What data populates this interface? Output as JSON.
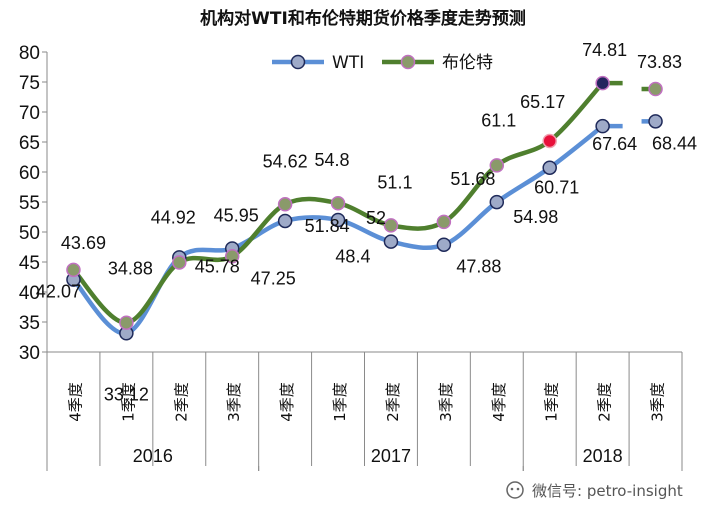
{
  "chart_data": {
    "type": "line",
    "title": "机构对WTI和布伦特期货价格季度走势预测",
    "categories": [
      "4季度",
      "1季度",
      "2季度",
      "3季度",
      "4季度",
      "1季度",
      "2季度",
      "3季度",
      "4季度",
      "1季度",
      "2季度",
      "3季度"
    ],
    "groups": [
      {
        "label": "2016",
        "start": 0,
        "end": 3
      },
      {
        "label": "2017",
        "start": 4,
        "end": 8
      },
      {
        "label": "2018",
        "start": 9,
        "end": 11
      }
    ],
    "series": [
      {
        "name": "WTI",
        "values": [
          42.07,
          33.12,
          45.78,
          47.25,
          51.84,
          52,
          48.4,
          47.88,
          54.98,
          60.71,
          67.64,
          68.44
        ],
        "labels": [
          "42.07",
          "33.12",
          "45.78",
          "47.25",
          "51.84",
          "52",
          "48.4",
          "47.88",
          "54.98",
          "60.71",
          "67.64",
          "68.44"
        ]
      },
      {
        "name": "布伦特",
        "values": [
          43.69,
          34.88,
          44.92,
          45.95,
          54.62,
          54.8,
          51.1,
          51.68,
          61.1,
          65.17,
          74.81,
          73.83
        ],
        "labels": [
          "43.69",
          "34.88",
          "44.92",
          "45.95",
          "54.62",
          "54.8",
          "51.1",
          "51.68",
          "61.1",
          "65.17",
          "74.81",
          "73.83"
        ]
      }
    ],
    "ylim": [
      30,
      80
    ],
    "yticks": [
      30,
      35,
      40,
      45,
      50,
      55,
      60,
      65,
      70,
      75,
      80
    ],
    "legend": "top-center",
    "grid": false
  },
  "colors": {
    "wti_line": "#5b8fd6",
    "wti_marker": "#9eaac8",
    "wti_marker_edge": "#1f2a5a",
    "brent_line": "#4f7f2e",
    "brent_marker": "#8a9a6a",
    "brent_marker_edge": "#c070c0",
    "highlight_red": "#e8103a",
    "highlight_navy": "#24245e"
  },
  "watermark": "微信号: petro-insight",
  "watermark_icon": "wechat-icon"
}
